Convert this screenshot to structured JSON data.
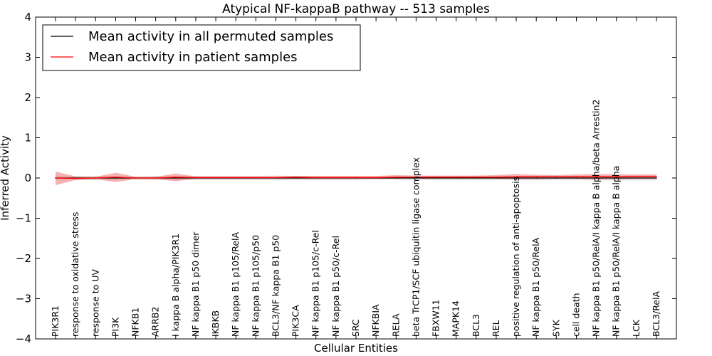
{
  "chart_data": {
    "type": "line",
    "title": "Atypical NF-kappaB pathway -- 513 samples",
    "xlabel": "Cellular Entities",
    "ylabel": "Inferred Activity",
    "ylim": [
      -4,
      4
    ],
    "yticks": [
      -4,
      -3,
      -2,
      -1,
      0,
      1,
      2,
      3,
      4
    ],
    "ytick_labels": [
      "−4",
      "−3",
      "−2",
      "−1",
      "0",
      "1",
      "2",
      "3",
      "4"
    ],
    "grid": false,
    "legend_position": "top-left",
    "categories": [
      "PIK3R1",
      "response to oxidative stress",
      "response to UV",
      "PI3K",
      "NFKB1",
      "ARRB2",
      "I kappa B alpha/PIK3R1",
      "NF kappa B1 p50 dimer",
      "IKBKB",
      "NF kappa B1 p105/RelA",
      "NF kappa B1 p105/p50",
      "BCL3/NF kappa B1 p50",
      "PIK3CA",
      "NF kappa B1 p105/c-Rel",
      "NF kappa B1 p50/c-Rel",
      "SRC",
      "NFKBIA",
      "RELA",
      "beta TrCP1/SCF ubiquitin ligase complex",
      "FBXW11",
      "MAPK14",
      "BCL3",
      "REL",
      "positive regulation of anti-apoptosis",
      "NF kappa B1 p50/RelA",
      "SYK",
      "cell death",
      "NF kappa B1 p50/RelA/I kappa B alpha/beta Arrestin2",
      "NF kappa B1 p50/RelA/I kappa B alpha",
      "LCK",
      "BCL3/RelA"
    ],
    "series": [
      {
        "name": "Mean activity in all permuted samples",
        "color": "#000000",
        "values": [
          0.0,
          0.0,
          0.0,
          0.0,
          0.0,
          0.0,
          0.0,
          0.0,
          0.0,
          0.0,
          0.0,
          0.0,
          0.0,
          0.0,
          0.0,
          0.0,
          0.0,
          0.0,
          0.0,
          0.0,
          0.0,
          0.0,
          0.0,
          0.0,
          0.0,
          0.0,
          0.0,
          0.0,
          0.0,
          0.0,
          0.0
        ],
        "band_lower": [
          -0.06,
          -0.05,
          -0.05,
          -0.05,
          -0.04,
          -0.05,
          -0.05,
          -0.05,
          -0.05,
          -0.05,
          -0.05,
          -0.06,
          -0.05,
          -0.05,
          -0.05,
          -0.05,
          -0.04,
          -0.04,
          -0.05,
          -0.05,
          -0.05,
          -0.05,
          -0.05,
          -0.05,
          -0.05,
          -0.05,
          -0.05,
          -0.06,
          -0.06,
          -0.06,
          -0.06
        ],
        "band_upper": [
          0.06,
          0.05,
          0.05,
          0.05,
          0.04,
          0.05,
          0.05,
          0.05,
          0.05,
          0.05,
          0.05,
          0.06,
          0.05,
          0.05,
          0.05,
          0.05,
          0.04,
          0.04,
          0.05,
          0.05,
          0.05,
          0.05,
          0.05,
          0.05,
          0.05,
          0.05,
          0.05,
          0.06,
          0.06,
          0.06,
          0.06
        ]
      },
      {
        "name": "Mean activity in patient samples",
        "color": "#ff0000",
        "values": [
          0.0,
          -0.01,
          0.0,
          0.02,
          0.0,
          0.0,
          0.02,
          0.01,
          0.01,
          0.01,
          0.01,
          0.01,
          0.02,
          0.01,
          0.01,
          0.01,
          0.01,
          0.02,
          0.02,
          0.02,
          0.02,
          0.02,
          0.02,
          0.03,
          0.03,
          0.03,
          0.03,
          0.03,
          0.03,
          0.04,
          0.04
        ],
        "band_lower": [
          -0.18,
          -0.05,
          -0.03,
          -0.1,
          -0.03,
          -0.03,
          -0.08,
          -0.02,
          -0.02,
          -0.02,
          -0.02,
          -0.02,
          -0.02,
          -0.02,
          -0.02,
          -0.02,
          -0.02,
          -0.02,
          -0.02,
          -0.02,
          -0.02,
          -0.02,
          -0.02,
          -0.03,
          -0.03,
          -0.02,
          -0.02,
          -0.04,
          -0.03,
          -0.02,
          -0.02
        ],
        "band_upper": [
          0.16,
          0.04,
          0.03,
          0.13,
          0.03,
          0.03,
          0.11,
          0.04,
          0.04,
          0.04,
          0.04,
          0.04,
          0.05,
          0.05,
          0.05,
          0.05,
          0.05,
          0.07,
          0.06,
          0.06,
          0.06,
          0.06,
          0.07,
          0.1,
          0.08,
          0.07,
          0.09,
          0.1,
          0.09,
          0.09,
          0.09
        ]
      }
    ]
  }
}
